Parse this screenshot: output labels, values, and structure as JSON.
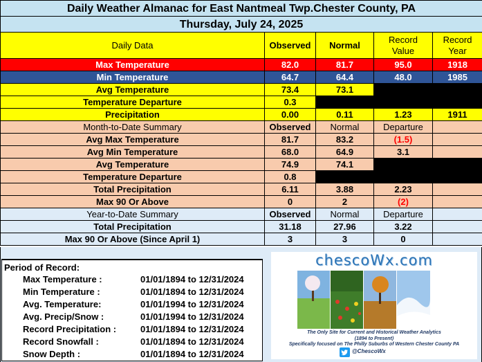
{
  "header": {
    "title": "Daily Weather Almanac for East Nantmeal Twp.Chester County, PA",
    "date": "Thursday, July 24, 2025"
  },
  "daily": {
    "headers": [
      "Daily Data",
      "Observed",
      "Normal",
      "Record Value",
      "Record Year"
    ],
    "rows": [
      {
        "label": "Max Temperature",
        "observed": "82.0",
        "normal": "81.7",
        "record_value": "95.0",
        "record_year": "1918"
      },
      {
        "label": "Min Temperature",
        "observed": "64.7",
        "normal": "64.4",
        "record_value": "48.0",
        "record_year": "1985"
      },
      {
        "label": "Avg Temperature",
        "observed": "73.4",
        "normal": "73.1"
      },
      {
        "label": "Temperature Departure",
        "observed": "0.3"
      },
      {
        "label": "Precipitation",
        "observed": "0.00",
        "normal": "0.11",
        "record_value": "1.23",
        "record_year": "1911"
      }
    ]
  },
  "mtd": {
    "headers": [
      "Month-to-Date Summary",
      "Observed",
      "Normal",
      "Departure"
    ],
    "rows": [
      {
        "label": "Avg Max Temperature",
        "observed": "81.7",
        "normal": "83.2",
        "departure": "(1.5)"
      },
      {
        "label": "Avg Min Temperature",
        "observed": "68.0",
        "normal": "64.9",
        "departure": "3.1"
      },
      {
        "label": "Avg Temperature",
        "observed": "74.9",
        "normal": "74.1"
      },
      {
        "label": "Temperature Departure",
        "observed": "0.8"
      },
      {
        "label": "Total Precipitation",
        "observed": "6.11",
        "normal": "3.88",
        "departure": "2.23"
      },
      {
        "label": "Max 90 Or Above",
        "observed": "0",
        "normal": "2",
        "departure": "(2)"
      }
    ]
  },
  "ytd": {
    "headers": [
      "Year-to-Date Summary",
      "Observed",
      "Normal",
      "Departure"
    ],
    "rows": [
      {
        "label": "Total Precipitation",
        "observed": "31.18",
        "normal": "27.96",
        "departure": "3.22"
      },
      {
        "label": "Max 90 Or Above (Since April 1)",
        "observed": "3",
        "normal": "3",
        "departure": "0"
      }
    ]
  },
  "period": {
    "title": "Period of Record:",
    "rows": [
      {
        "label": "Max Temperature :",
        "range": "01/01/1894 to 12/31/2024"
      },
      {
        "label": "Min Temperature :",
        "range": "01/01/1894 to 12/31/2024"
      },
      {
        "label": "Avg. Temperature:",
        "range": "01/01/1994 to 12/31/2024"
      },
      {
        "label": "Avg. Precip/Snow :",
        "range": "01/01/1994 to 12/31/2024"
      },
      {
        "label": "Record Precipitation :",
        "range": "01/01/1894 to 12/31/2024"
      },
      {
        "label": "Record Snowfall :",
        "range": "01/01/1894 to 12/31/2024"
      },
      {
        "label": "Snow Depth :",
        "range": "01/01/1894 to 12/31/2024"
      }
    ]
  },
  "branding": {
    "site": "chescoWx.com",
    "tagline": "The Only Site for Current and Historical Weather Analytics",
    "years": "(1894 to Present)",
    "focus": "Specifically focused on The Philly Suburbs of Western Chester County PA",
    "handle": "@ChescoWx",
    "icon": "twitter-bird-icon"
  },
  "colors": {
    "title_bg": "#c5e3f1",
    "daily_bg": "#ffff00",
    "max_row": "#ff0000",
    "min_row": "#2f5597",
    "summary_bg": "#f8cbad",
    "ytd_bg": "#deebf7",
    "negative": "#ff0000"
  }
}
